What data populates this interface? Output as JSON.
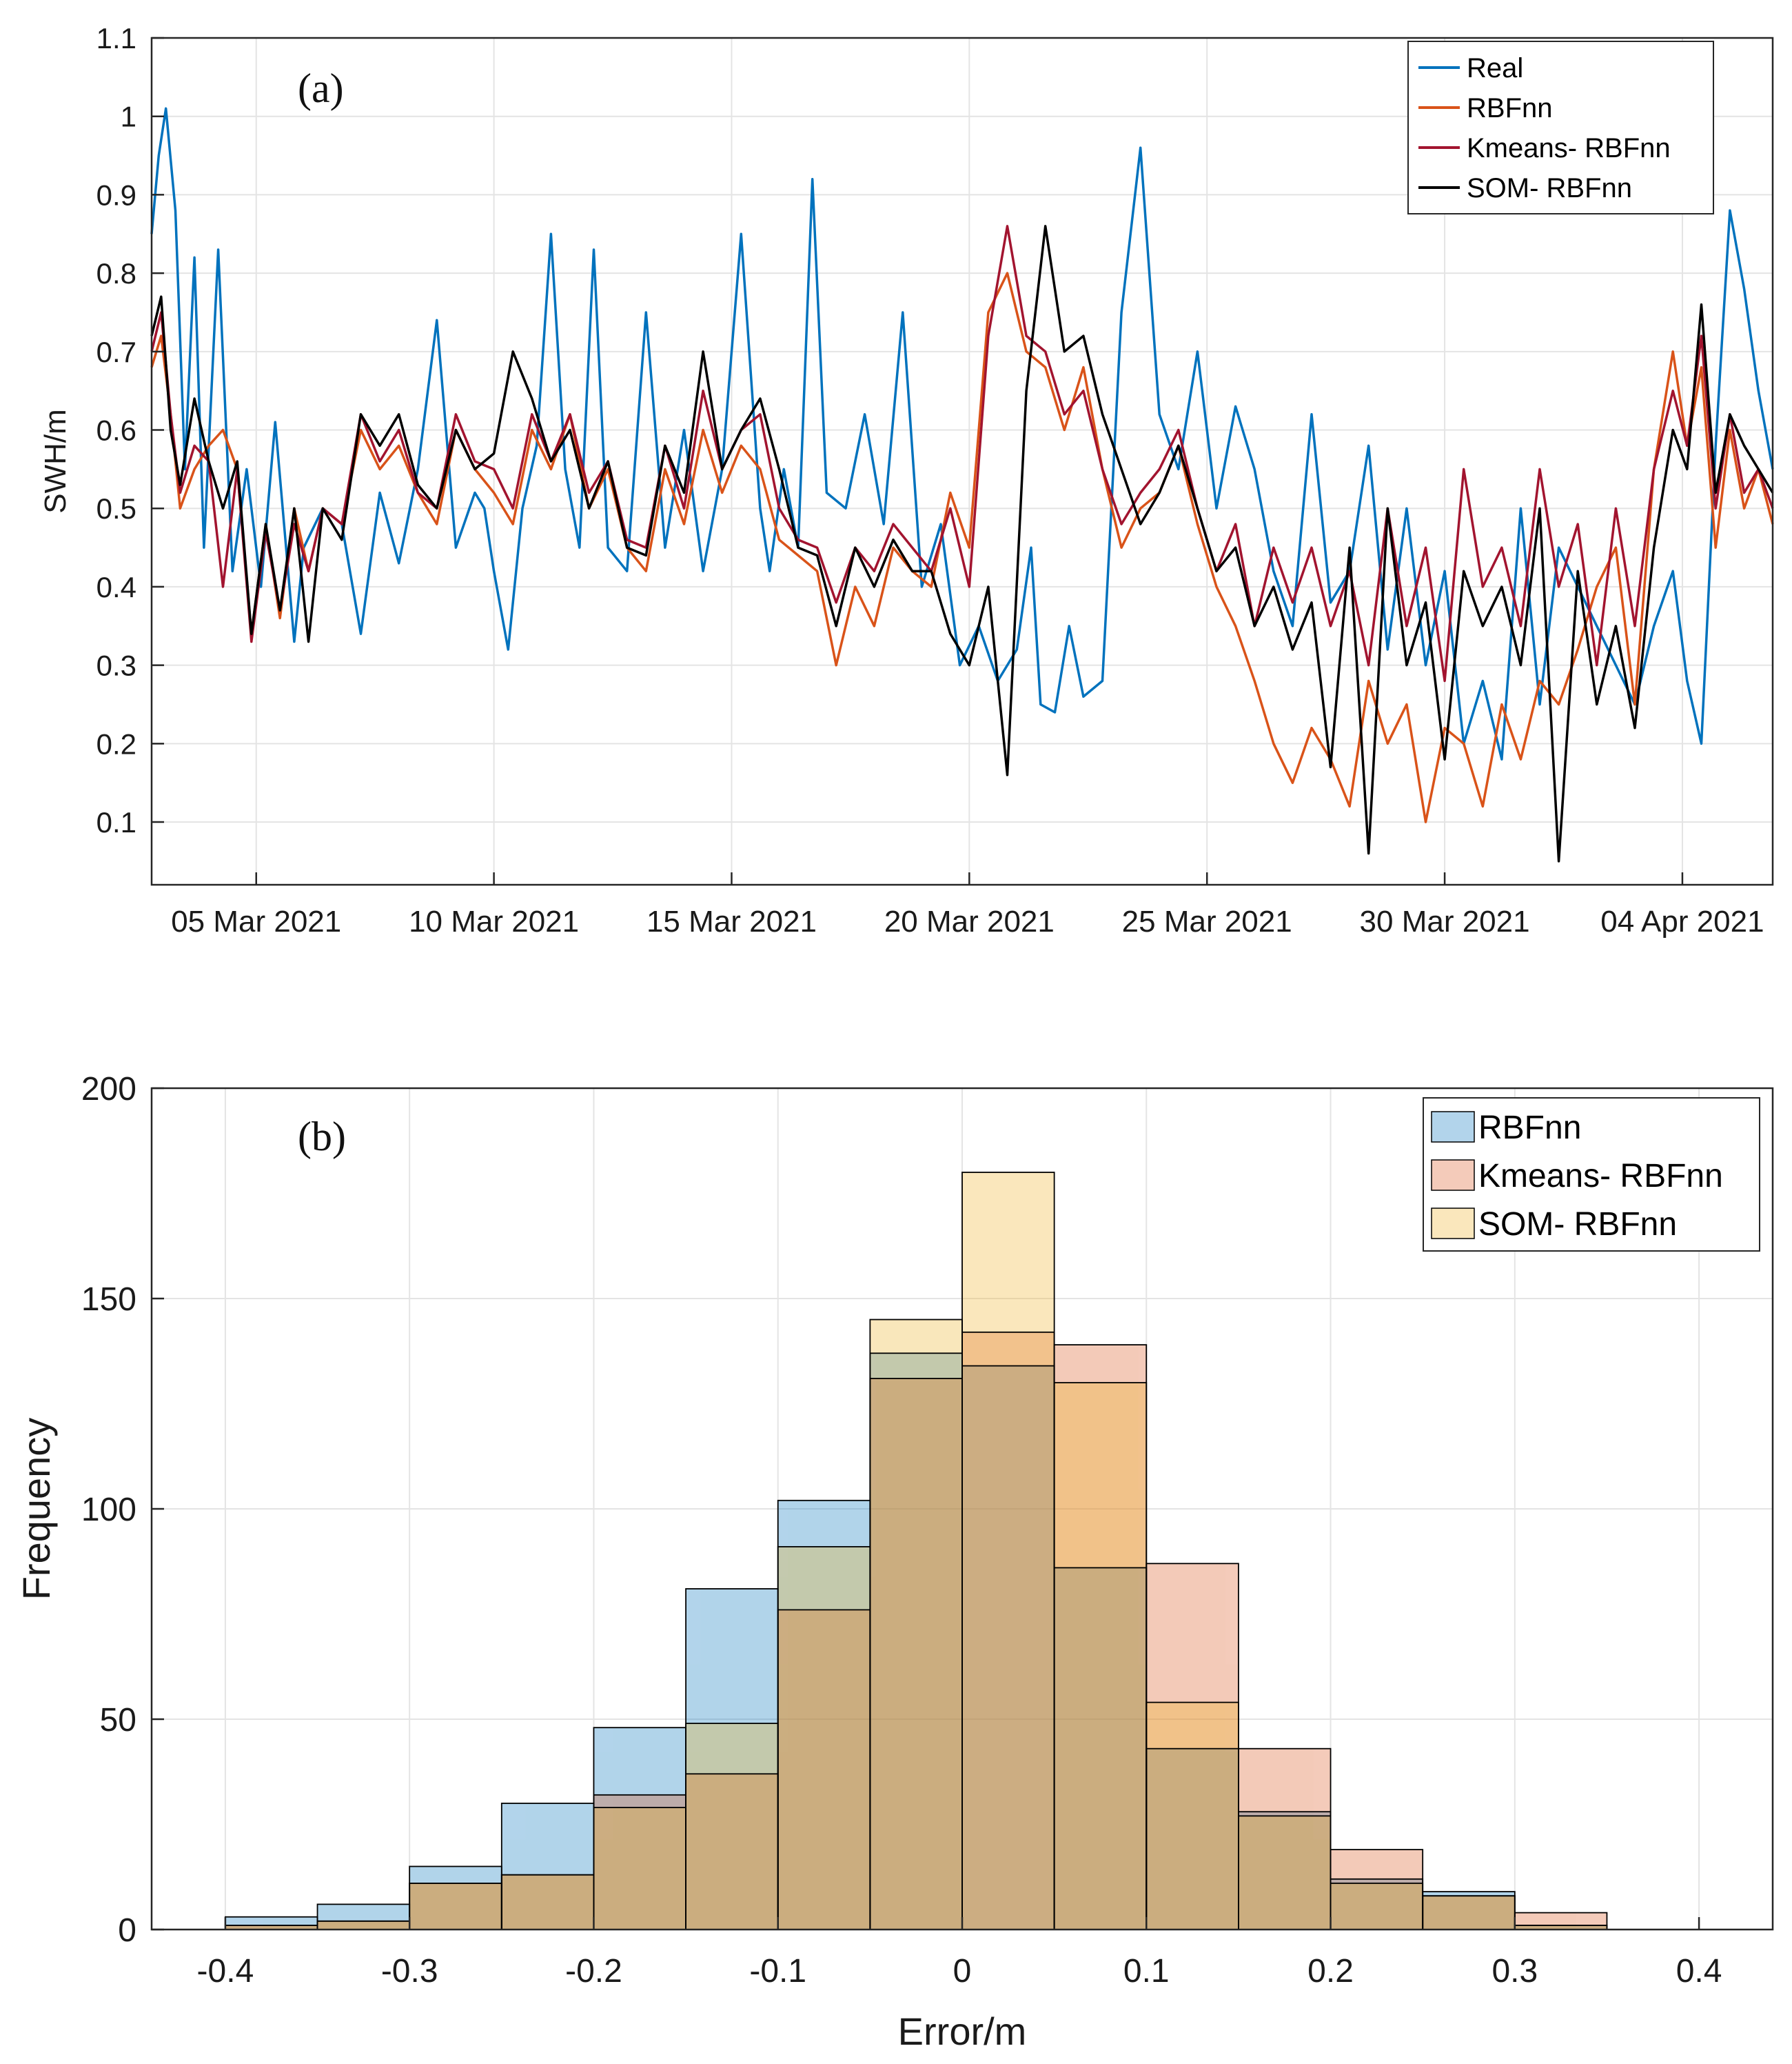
{
  "chart_data": [
    {
      "type": "line",
      "panel_label": "(a)",
      "title": "",
      "xlabel": "",
      "ylabel": "SWH/m",
      "ylim": [
        0.02,
        1.1
      ],
      "yticks": [
        "0.1",
        "0.2",
        "0.3",
        "0.4",
        "0.5",
        "0.6",
        "0.7",
        "0.8",
        "0.9",
        "1",
        "1.1"
      ],
      "ytick_values": [
        0.1,
        0.2,
        0.3,
        0.4,
        0.5,
        0.6,
        0.7,
        0.8,
        0.9,
        1.0,
        1.1
      ],
      "xlim_days": [
        0,
        34.1
      ],
      "xtick_labels": [
        "05 Mar 2021",
        "10 Mar 2021",
        "15 Mar 2021",
        "20 Mar 2021",
        "25 Mar 2021",
        "30 Mar 2021",
        "04 Apr 2021"
      ],
      "xtick_days": [
        2.2,
        7.2,
        12.2,
        17.2,
        22.2,
        27.2,
        32.2
      ],
      "grid": true,
      "legend_position": "top-right",
      "series": [
        {
          "name": "Real",
          "color": "#0072BD",
          "x": [
            0,
            0.15,
            0.3,
            0.5,
            0.7,
            0.9,
            1.1,
            1.4,
            1.7,
            2.0,
            2.3,
            2.6,
            3.0,
            3.2,
            3.6,
            4.0,
            4.4,
            4.8,
            5.2,
            5.6,
            6.0,
            6.4,
            6.8,
            7.0,
            7.2,
            7.5,
            7.8,
            8.1,
            8.4,
            8.7,
            9.0,
            9.3,
            9.6,
            10.0,
            10.4,
            10.8,
            11.2,
            11.6,
            12.0,
            12.4,
            12.8,
            13.0,
            13.3,
            13.6,
            13.9,
            14.2,
            14.6,
            15.0,
            15.4,
            15.8,
            16.2,
            16.6,
            17.0,
            17.4,
            17.8,
            18.2,
            18.5,
            18.7,
            19.0,
            19.3,
            19.6,
            20.0,
            20.4,
            20.8,
            21.2,
            21.6,
            22.0,
            22.4,
            22.8,
            23.2,
            23.6,
            24.0,
            24.4,
            24.8,
            25.2,
            25.6,
            26.0,
            26.4,
            26.8,
            27.2,
            27.6,
            28.0,
            28.4,
            28.8,
            29.2,
            29.6,
            30.0,
            30.4,
            30.8,
            31.2,
            31.6,
            32.0,
            32.3,
            32.6,
            32.9,
            33.2,
            33.5,
            33.8,
            34.1
          ],
          "y": [
            0.85,
            0.95,
            1.01,
            0.88,
            0.55,
            0.82,
            0.45,
            0.83,
            0.42,
            0.55,
            0.4,
            0.61,
            0.33,
            0.45,
            0.5,
            0.48,
            0.34,
            0.52,
            0.43,
            0.55,
            0.74,
            0.45,
            0.52,
            0.5,
            0.42,
            0.32,
            0.5,
            0.58,
            0.85,
            0.55,
            0.45,
            0.83,
            0.45,
            0.42,
            0.75,
            0.45,
            0.6,
            0.42,
            0.55,
            0.85,
            0.5,
            0.42,
            0.55,
            0.45,
            0.92,
            0.52,
            0.5,
            0.62,
            0.48,
            0.75,
            0.4,
            0.48,
            0.3,
            0.35,
            0.28,
            0.32,
            0.45,
            0.25,
            0.24,
            0.35,
            0.26,
            0.28,
            0.75,
            0.96,
            0.62,
            0.55,
            0.7,
            0.5,
            0.63,
            0.55,
            0.42,
            0.35,
            0.62,
            0.38,
            0.42,
            0.58,
            0.32,
            0.5,
            0.3,
            0.42,
            0.2,
            0.28,
            0.18,
            0.5,
            0.25,
            0.45,
            0.4,
            0.35,
            0.3,
            0.25,
            0.35,
            0.42,
            0.28,
            0.2,
            0.58,
            0.88,
            0.78,
            0.65,
            0.55
          ]
        },
        {
          "name": "RBFnn",
          "color": "#D95319",
          "x": [
            0,
            0.2,
            0.4,
            0.6,
            0.9,
            1.2,
            1.5,
            1.8,
            2.1,
            2.4,
            2.7,
            3.0,
            3.3,
            3.6,
            4.0,
            4.4,
            4.8,
            5.2,
            5.6,
            6.0,
            6.4,
            6.8,
            7.2,
            7.6,
            8.0,
            8.4,
            8.8,
            9.2,
            9.6,
            10.0,
            10.4,
            10.8,
            11.2,
            11.6,
            12.0,
            12.4,
            12.8,
            13.2,
            13.6,
            14.0,
            14.4,
            14.8,
            15.2,
            15.6,
            16.0,
            16.4,
            16.8,
            17.2,
            17.6,
            18.0,
            18.4,
            18.8,
            19.2,
            19.6,
            20.0,
            20.4,
            20.8,
            21.2,
            21.6,
            22.0,
            22.4,
            22.8,
            23.2,
            23.6,
            24.0,
            24.4,
            24.8,
            25.2,
            25.6,
            26.0,
            26.4,
            26.8,
            27.2,
            27.6,
            28.0,
            28.4,
            28.8,
            29.2,
            29.6,
            30.0,
            30.4,
            30.8,
            31.2,
            31.6,
            32.0,
            32.3,
            32.6,
            32.9,
            33.2,
            33.5,
            33.8,
            34.1
          ],
          "y": [
            0.68,
            0.72,
            0.62,
            0.5,
            0.55,
            0.58,
            0.6,
            0.55,
            0.34,
            0.48,
            0.36,
            0.5,
            0.42,
            0.5,
            0.48,
            0.6,
            0.55,
            0.58,
            0.52,
            0.48,
            0.6,
            0.55,
            0.52,
            0.48,
            0.6,
            0.55,
            0.62,
            0.5,
            0.55,
            0.45,
            0.42,
            0.55,
            0.48,
            0.6,
            0.52,
            0.58,
            0.55,
            0.46,
            0.44,
            0.42,
            0.3,
            0.4,
            0.35,
            0.45,
            0.42,
            0.4,
            0.52,
            0.45,
            0.75,
            0.8,
            0.7,
            0.68,
            0.6,
            0.68,
            0.55,
            0.45,
            0.5,
            0.52,
            0.58,
            0.48,
            0.4,
            0.35,
            0.28,
            0.2,
            0.15,
            0.22,
            0.18,
            0.12,
            0.28,
            0.2,
            0.25,
            0.1,
            0.22,
            0.2,
            0.12,
            0.25,
            0.18,
            0.28,
            0.25,
            0.32,
            0.4,
            0.45,
            0.25,
            0.55,
            0.7,
            0.58,
            0.68,
            0.45,
            0.6,
            0.5,
            0.55,
            0.48
          ]
        },
        {
          "name": "Kmeans- RBFnn",
          "color": "#A2142F",
          "x": [
            0,
            0.2,
            0.4,
            0.6,
            0.9,
            1.2,
            1.5,
            1.8,
            2.1,
            2.4,
            2.7,
            3.0,
            3.3,
            3.6,
            4.0,
            4.4,
            4.8,
            5.2,
            5.6,
            6.0,
            6.4,
            6.8,
            7.2,
            7.6,
            8.0,
            8.4,
            8.8,
            9.2,
            9.6,
            10.0,
            10.4,
            10.8,
            11.2,
            11.6,
            12.0,
            12.4,
            12.8,
            13.2,
            13.6,
            14.0,
            14.4,
            14.8,
            15.2,
            15.6,
            16.0,
            16.4,
            16.8,
            17.2,
            17.6,
            18.0,
            18.4,
            18.8,
            19.2,
            19.6,
            20.0,
            20.4,
            20.8,
            21.2,
            21.6,
            22.0,
            22.4,
            22.8,
            23.2,
            23.6,
            24.0,
            24.4,
            24.8,
            25.2,
            25.6,
            26.0,
            26.4,
            26.8,
            27.2,
            27.6,
            28.0,
            28.4,
            28.8,
            29.2,
            29.6,
            30.0,
            30.4,
            30.8,
            31.2,
            31.6,
            32.0,
            32.3,
            32.6,
            32.9,
            33.2,
            33.5,
            33.8,
            34.1
          ],
          "y": [
            0.7,
            0.75,
            0.62,
            0.52,
            0.58,
            0.56,
            0.4,
            0.55,
            0.33,
            0.47,
            0.37,
            0.48,
            0.42,
            0.5,
            0.48,
            0.62,
            0.56,
            0.6,
            0.52,
            0.5,
            0.62,
            0.56,
            0.55,
            0.5,
            0.62,
            0.56,
            0.62,
            0.52,
            0.56,
            0.46,
            0.45,
            0.58,
            0.5,
            0.65,
            0.55,
            0.6,
            0.62,
            0.5,
            0.46,
            0.45,
            0.38,
            0.45,
            0.42,
            0.48,
            0.45,
            0.42,
            0.5,
            0.4,
            0.72,
            0.86,
            0.72,
            0.7,
            0.62,
            0.65,
            0.55,
            0.48,
            0.52,
            0.55,
            0.6,
            0.5,
            0.42,
            0.48,
            0.35,
            0.45,
            0.38,
            0.45,
            0.35,
            0.42,
            0.3,
            0.5,
            0.35,
            0.45,
            0.28,
            0.55,
            0.4,
            0.45,
            0.35,
            0.55,
            0.4,
            0.48,
            0.3,
            0.5,
            0.35,
            0.55,
            0.65,
            0.58,
            0.72,
            0.5,
            0.62,
            0.52,
            0.55,
            0.5
          ]
        },
        {
          "name": "SOM- RBFnn",
          "color": "#000000",
          "x": [
            0,
            0.2,
            0.4,
            0.6,
            0.9,
            1.2,
            1.5,
            1.8,
            2.1,
            2.4,
            2.7,
            3.0,
            3.3,
            3.6,
            4.0,
            4.4,
            4.8,
            5.2,
            5.6,
            6.0,
            6.4,
            6.8,
            7.2,
            7.6,
            8.0,
            8.4,
            8.8,
            9.2,
            9.6,
            10.0,
            10.4,
            10.8,
            11.2,
            11.6,
            12.0,
            12.4,
            12.8,
            13.2,
            13.6,
            14.0,
            14.4,
            14.8,
            15.2,
            15.6,
            16.0,
            16.4,
            16.8,
            17.2,
            17.6,
            18.0,
            18.4,
            18.8,
            19.2,
            19.6,
            20.0,
            20.4,
            20.8,
            21.2,
            21.6,
            22.0,
            22.4,
            22.8,
            23.2,
            23.6,
            24.0,
            24.4,
            24.8,
            25.2,
            25.6,
            26.0,
            26.4,
            26.8,
            27.2,
            27.6,
            28.0,
            28.4,
            28.8,
            29.2,
            29.6,
            30.0,
            30.4,
            30.8,
            31.2,
            31.6,
            32.0,
            32.3,
            32.6,
            32.9,
            33.2,
            33.5,
            33.8,
            34.1
          ],
          "y": [
            0.72,
            0.77,
            0.6,
            0.53,
            0.64,
            0.56,
            0.5,
            0.56,
            0.34,
            0.48,
            0.37,
            0.5,
            0.33,
            0.5,
            0.46,
            0.62,
            0.58,
            0.62,
            0.53,
            0.5,
            0.6,
            0.55,
            0.57,
            0.7,
            0.64,
            0.56,
            0.6,
            0.5,
            0.56,
            0.45,
            0.44,
            0.58,
            0.52,
            0.7,
            0.55,
            0.6,
            0.64,
            0.55,
            0.45,
            0.44,
            0.35,
            0.45,
            0.4,
            0.46,
            0.42,
            0.42,
            0.34,
            0.3,
            0.4,
            0.16,
            0.65,
            0.86,
            0.7,
            0.72,
            0.62,
            0.55,
            0.48,
            0.52,
            0.58,
            0.5,
            0.42,
            0.45,
            0.35,
            0.4,
            0.32,
            0.38,
            0.17,
            0.45,
            0.06,
            0.5,
            0.3,
            0.38,
            0.18,
            0.42,
            0.35,
            0.4,
            0.3,
            0.5,
            0.05,
            0.42,
            0.25,
            0.35,
            0.22,
            0.45,
            0.6,
            0.55,
            0.76,
            0.52,
            0.62,
            0.58,
            0.55,
            0.52
          ]
        }
      ]
    },
    {
      "type": "bar",
      "panel_label": "(b)",
      "title": "",
      "xlabel": "Error/m",
      "ylabel": "Frequency",
      "xlim": [
        -0.44,
        0.44
      ],
      "ylim": [
        0,
        200
      ],
      "xticks": [
        "-0.4",
        "-0.3",
        "-0.2",
        "-0.1",
        "0",
        "0.1",
        "0.2",
        "0.3",
        "0.4"
      ],
      "xtick_values": [
        -0.4,
        -0.3,
        -0.2,
        -0.1,
        0,
        0.1,
        0.2,
        0.3,
        0.4
      ],
      "yticks": [
        "0",
        "50",
        "100",
        "150",
        "200"
      ],
      "ytick_values": [
        0,
        50,
        100,
        150,
        200
      ],
      "grid": true,
      "legend_position": "top-right",
      "bin_edges": [
        -0.4,
        -0.35,
        -0.3,
        -0.25,
        -0.2,
        -0.15,
        -0.1,
        -0.05,
        0,
        0.05,
        0.1,
        0.15,
        0.2,
        0.25,
        0.3,
        0.35
      ],
      "series": [
        {
          "name": "RBFnn",
          "color": "#0072BD",
          "values": [
            3,
            6,
            15,
            30,
            48,
            81,
            102,
            137,
            134,
            86,
            43,
            28,
            12,
            9,
            1
          ]
        },
        {
          "name": "Kmeans- RBFnn",
          "color": "#D95319",
          "values": [
            1,
            2,
            11,
            13,
            32,
            37,
            76,
            131,
            142,
            139,
            87,
            43,
            19,
            8,
            4
          ]
        },
        {
          "name": "SOM- RBFnn",
          "color": "#EDB120",
          "values": [
            1,
            2,
            11,
            13,
            29,
            49,
            91,
            145,
            180,
            130,
            54,
            27,
            11,
            8,
            1
          ]
        }
      ]
    }
  ]
}
